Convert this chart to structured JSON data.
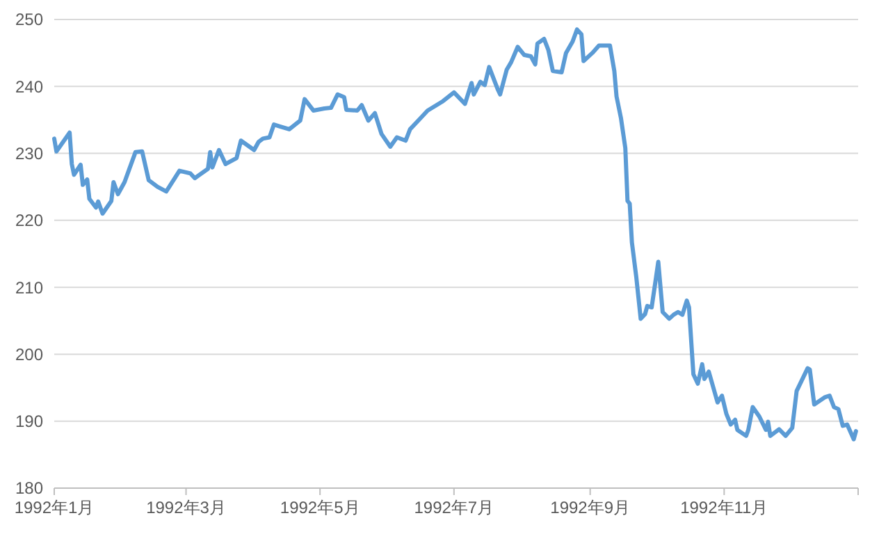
{
  "chart_data": {
    "type": "line",
    "xlim": [
      "1992-01-01",
      "1993-01-01"
    ],
    "ylim": [
      180,
      250
    ],
    "yticks": [
      180,
      190,
      200,
      210,
      220,
      230,
      240,
      250
    ],
    "xticks": [
      {
        "value": "1992-01-01",
        "label": "1992年1月"
      },
      {
        "value": "1992-03-01",
        "label": "1992年3月"
      },
      {
        "value": "1992-05-01",
        "label": "1992年5月"
      },
      {
        "value": "1992-07-01",
        "label": "1992年7月"
      },
      {
        "value": "1992-09-01",
        "label": "1992年9月"
      },
      {
        "value": "1992-11-01",
        "label": "1992年11月"
      },
      {
        "value": "1993-01-01",
        "label": null
      }
    ],
    "grid": "y",
    "marker": "none",
    "line_style": "solid",
    "x": [
      "1992-01-01",
      "1992-01-02",
      "1992-01-08",
      "1992-01-09",
      "1992-01-10",
      "1992-01-13",
      "1992-01-14",
      "1992-01-16",
      "1992-01-17",
      "1992-01-20",
      "1992-01-21",
      "1992-01-23",
      "1992-01-27",
      "1992-01-28",
      "1992-01-30",
      "1992-02-02",
      "1992-02-07",
      "1992-02-10",
      "1992-02-13",
      "1992-02-17",
      "1992-02-21",
      "1992-02-27",
      "1992-03-03",
      "1992-03-05",
      "1992-03-11",
      "1992-03-12",
      "1992-03-13",
      "1992-03-16",
      "1992-03-19",
      "1992-03-24",
      "1992-03-26",
      "1992-04-01",
      "1992-04-03",
      "1992-04-05",
      "1992-04-08",
      "1992-04-10",
      "1992-04-13",
      "1992-04-17",
      "1992-04-22",
      "1992-04-24",
      "1992-04-28",
      "1992-05-03",
      "1992-05-06",
      "1992-05-09",
      "1992-05-12",
      "1992-05-13",
      "1992-05-18",
      "1992-05-20",
      "1992-05-23",
      "1992-05-26",
      "1992-05-29",
      "1992-06-02",
      "1992-06-05",
      "1992-06-09",
      "1992-06-11",
      "1992-06-15",
      "1992-06-19",
      "1992-06-26",
      "1992-07-01",
      "1992-07-06",
      "1992-07-09",
      "1992-07-10",
      "1992-07-13",
      "1992-07-15",
      "1992-07-17",
      "1992-07-21",
      "1992-07-22",
      "1992-07-25",
      "1992-07-27",
      "1992-07-30",
      "1992-08-02",
      "1992-08-05",
      "1992-08-07",
      "1992-08-08",
      "1992-08-11",
      "1992-08-13",
      "1992-08-15",
      "1992-08-19",
      "1992-08-21",
      "1992-08-24",
      "1992-08-26",
      "1992-08-28",
      "1992-08-29",
      "1992-09-02",
      "1992-09-05",
      "1992-09-10",
      "1992-09-12",
      "1992-09-13",
      "1992-09-15",
      "1992-09-17",
      "1992-09-18",
      "1992-09-19",
      "1992-09-20",
      "1992-09-22",
      "1992-09-24",
      "1992-09-26",
      "1992-09-27",
      "1992-09-29",
      "1992-10-01",
      "1992-10-02",
      "1992-10-04",
      "1992-10-07",
      "1992-10-09",
      "1992-10-11",
      "1992-10-13",
      "1992-10-15",
      "1992-10-16",
      "1992-10-18",
      "1992-10-20",
      "1992-10-22",
      "1992-10-23",
      "1992-10-25",
      "1992-10-29",
      "1992-10-31",
      "1992-11-02",
      "1992-11-04",
      "1992-11-06",
      "1992-11-07",
      "1992-11-11",
      "1992-11-12",
      "1992-11-14",
      "1992-11-17",
      "1992-11-20",
      "1992-11-21",
      "1992-11-22",
      "1992-11-26",
      "1992-11-29",
      "1992-12-02",
      "1992-12-04",
      "1992-12-09",
      "1992-12-10",
      "1992-12-12",
      "1992-12-17",
      "1992-12-19",
      "1992-12-21",
      "1992-12-23",
      "1992-12-25",
      "1992-12-27",
      "1992-12-30",
      "1992-12-31"
    ],
    "series": [
      {
        "color": "#5b9bd5",
        "values": [
          232.2,
          230.3,
          233.1,
          228.4,
          226.8,
          228.3,
          225.3,
          226.1,
          223.2,
          221.9,
          222.8,
          221.0,
          222.9,
          225.7,
          223.9,
          225.7,
          230.2,
          230.3,
          226.0,
          225.0,
          224.3,
          227.4,
          227.0,
          226.3,
          227.7,
          230.2,
          227.9,
          230.5,
          228.4,
          229.3,
          231.9,
          230.5,
          231.7,
          232.2,
          232.4,
          234.3,
          234.0,
          233.6,
          234.9,
          238.1,
          236.4,
          236.7,
          236.8,
          238.8,
          238.4,
          236.5,
          236.4,
          237.2,
          234.9,
          236.0,
          232.9,
          231.0,
          232.4,
          231.9,
          233.6,
          235.0,
          236.4,
          237.8,
          239.1,
          237.4,
          240.5,
          238.8,
          240.7,
          240.2,
          242.9,
          239.5,
          238.8,
          242.5,
          243.6,
          245.9,
          244.7,
          244.5,
          243.3,
          246.4,
          247.1,
          245.4,
          242.3,
          242.1,
          245.0,
          246.7,
          248.5,
          247.8,
          243.8,
          245.0,
          246.1,
          246.1,
          242.3,
          238.5,
          235.3,
          230.8,
          222.9,
          222.5,
          216.7,
          211.5,
          205.3,
          206.0,
          207.2,
          207.0,
          211.5,
          213.8,
          206.3,
          205.3,
          205.9,
          206.3,
          205.9,
          208.0,
          207.0,
          197.0,
          195.6,
          198.5,
          196.3,
          197.4,
          192.8,
          193.8,
          191.1,
          189.5,
          190.2,
          188.7,
          187.8,
          188.7,
          192.1,
          190.7,
          188.7,
          189.9,
          187.8,
          188.8,
          187.8,
          189.0,
          194.5,
          197.9,
          197.7,
          192.5,
          193.6,
          193.8,
          192.1,
          191.8,
          189.3,
          189.5,
          187.3,
          188.5
        ]
      }
    ]
  }
}
